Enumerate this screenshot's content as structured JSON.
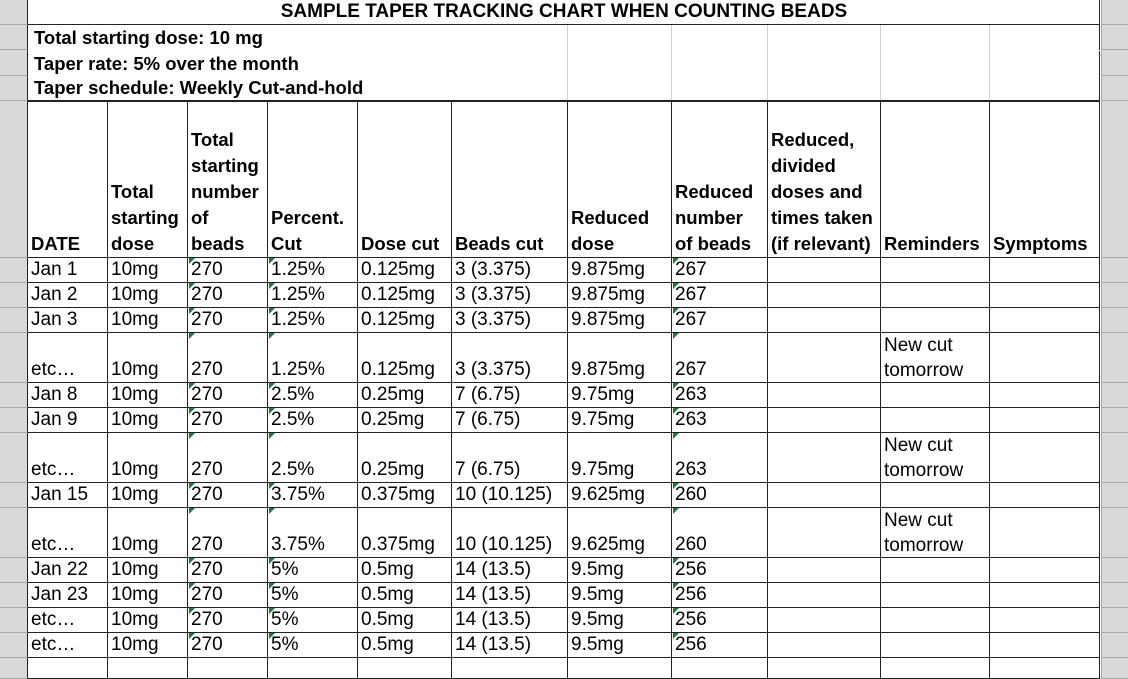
{
  "title": "SAMPLE TAPER TRACKING CHART WHEN COUNTING BEADS",
  "info": [
    "Total starting dose: 10 mg",
    "Taper rate: 5% over the month",
    "Taper schedule: Weekly Cut-and-hold"
  ],
  "table": {
    "headers": [
      "DATE",
      "Total starting dose",
      "Total starting number of beads",
      "Percent. Cut",
      "Dose cut",
      "Beads cut",
      "Reduced dose",
      "Reduced number of beads",
      "Reduced, divided doses and times taken (if relevant)",
      "Reminders",
      "Symptoms"
    ],
    "rows": [
      [
        "Jan 1",
        "10mg",
        "270",
        "1.25%",
        "0.125mg",
        "3 (3.375)",
        "9.875mg",
        "267",
        null,
        null,
        null
      ],
      [
        "Jan 2",
        "10mg",
        "270",
        "1.25%",
        "0.125mg",
        "3 (3.375)",
        "9.875mg",
        "267",
        null,
        null,
        null
      ],
      [
        "Jan 3",
        "10mg",
        "270",
        "1.25%",
        "0.125mg",
        "3 (3.375)",
        "9.875mg",
        "267",
        null,
        null,
        null
      ],
      [
        "etc…",
        "10mg",
        "270",
        "1.25%",
        "0.125mg",
        "3 (3.375)",
        "9.875mg",
        "267",
        null,
        "New cut tomorrow",
        null
      ],
      [
        "Jan 8",
        "10mg",
        "270",
        "2.5%",
        "0.25mg",
        "7 (6.75)",
        "9.75mg",
        "263",
        null,
        null,
        null
      ],
      [
        "Jan 9",
        "10mg",
        "270",
        "2.5%",
        "0.25mg",
        "7 (6.75)",
        "9.75mg",
        "263",
        null,
        null,
        null
      ],
      [
        "etc…",
        "10mg",
        "270",
        "2.5%",
        "0.25mg",
        "7 (6.75)",
        "9.75mg",
        "263",
        null,
        "New cut tomorrow",
        null
      ],
      [
        "Jan 15",
        "10mg",
        "270",
        "3.75%",
        "0.375mg",
        "10 (10.125)",
        "9.625mg",
        "260",
        null,
        null,
        null
      ],
      [
        "etc…",
        "10mg",
        "270",
        "3.75%",
        "0.375mg",
        "10 (10.125)",
        "9.625mg",
        "260",
        null,
        "New cut tomorrow",
        null
      ],
      [
        "Jan 22",
        "10mg",
        "270",
        "5%",
        "0.5mg",
        "14 (13.5)",
        "9.5mg",
        "256",
        null,
        null,
        null
      ],
      [
        "Jan 23",
        "10mg",
        "270",
        "5%",
        "0.5mg",
        "14 (13.5)",
        "9.5mg",
        "256",
        null,
        null,
        null
      ],
      [
        "etc…",
        "10mg",
        "270",
        "5%",
        "0.5mg",
        "14 (13.5)",
        "9.5mg",
        "256",
        null,
        null,
        null
      ],
      [
        "etc…",
        "10mg",
        "270",
        "5%",
        "0.5mg",
        "14 (13.5)",
        "9.5mg",
        "256",
        null,
        null,
        null
      ]
    ]
  }
}
